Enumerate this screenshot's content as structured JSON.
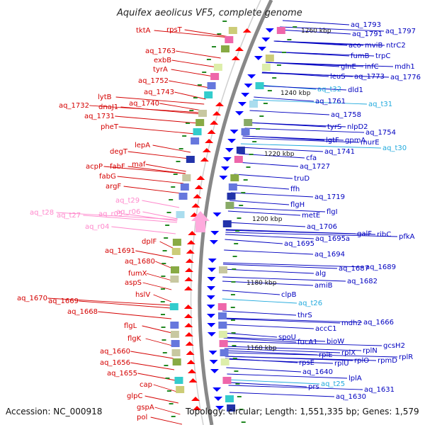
{
  "title": "Aquifex aeolicus VF5, complete genome",
  "footer": {
    "accession": "Accession: NC_000918",
    "topology": "Topology: circular; Length: 1,551,335 bp; Genes: 1,579"
  },
  "colors": {
    "left_label": "#d40000",
    "right_label": "#0000c0",
    "trna_pink": "#ff88cc",
    "trna_cyan": "#22aadd",
    "left_arrow": "#ff0000",
    "right_arrow": "#0000ff"
  },
  "kbp_ticks": [
    "1260 kbp",
    "1240 kbp",
    "1220 kbp",
    "1200 kbp",
    "1180 kbp",
    "1160 kbp"
  ],
  "left_labels": [
    {
      "text": "tktA",
      "color": "red"
    },
    {
      "text": "rpsT",
      "color": "red"
    },
    {
      "text": "aq_1763",
      "color": "red"
    },
    {
      "text": "exbB",
      "color": "red"
    },
    {
      "text": "tyrA",
      "color": "red"
    },
    {
      "text": "aq_1752",
      "color": "red"
    },
    {
      "text": "aq_1743",
      "color": "red"
    },
    {
      "text": "lytB",
      "color": "red"
    },
    {
      "text": "aq_1740",
      "color": "red"
    },
    {
      "text": "aq_1732",
      "color": "red"
    },
    {
      "text": "dnaJ1",
      "color": "red"
    },
    {
      "text": "aq_1731",
      "color": "red"
    },
    {
      "text": "pheT",
      "color": "red"
    },
    {
      "text": "lepA",
      "color": "red"
    },
    {
      "text": "degT",
      "color": "red"
    },
    {
      "text": "acpP",
      "color": "red"
    },
    {
      "text": "fabF",
      "color": "red"
    },
    {
      "text": "maf",
      "color": "red"
    },
    {
      "text": "fabG",
      "color": "red"
    },
    {
      "text": "argF",
      "color": "red"
    },
    {
      "text": "aq_t29",
      "color": "pink"
    },
    {
      "text": "aq_t28",
      "color": "pink"
    },
    {
      "text": "aq_t27",
      "color": "pink"
    },
    {
      "text": "aq_r05",
      "color": "pink"
    },
    {
      "text": "aq_r06",
      "color": "pink"
    },
    {
      "text": "aq_r04",
      "color": "pink"
    },
    {
      "text": "dplF",
      "color": "red"
    },
    {
      "text": "aq_1691",
      "color": "red"
    },
    {
      "text": "aq_1680",
      "color": "red"
    },
    {
      "text": "fumX",
      "color": "red"
    },
    {
      "text": "aspS",
      "color": "red"
    },
    {
      "text": "hslV",
      "color": "red"
    },
    {
      "text": "aq_1670",
      "color": "red"
    },
    {
      "text": "aq_1669",
      "color": "red"
    },
    {
      "text": "aq_1668",
      "color": "red"
    },
    {
      "text": "flgL",
      "color": "red"
    },
    {
      "text": "flgK",
      "color": "red"
    },
    {
      "text": "aq_1660",
      "color": "red"
    },
    {
      "text": "aq_1656",
      "color": "red"
    },
    {
      "text": "aq_1655",
      "color": "red"
    },
    {
      "text": "cap",
      "color": "red"
    },
    {
      "text": "glpC",
      "color": "red"
    },
    {
      "text": "gspA",
      "color": "red"
    },
    {
      "text": "pol",
      "color": "red"
    }
  ],
  "right_labels": [
    {
      "text": "aq_1793",
      "color": "blue"
    },
    {
      "text": "aq_1791",
      "color": "blue"
    },
    {
      "text": "aq_1797",
      "color": "blue"
    },
    {
      "text": "aco",
      "color": "blue"
    },
    {
      "text": "mviB",
      "color": "blue"
    },
    {
      "text": "ntrC2",
      "color": "blue"
    },
    {
      "text": "fumB",
      "color": "blue"
    },
    {
      "text": "trpC",
      "color": "blue"
    },
    {
      "text": "glnE",
      "color": "blue"
    },
    {
      "text": "infC",
      "color": "blue"
    },
    {
      "text": "mdh1",
      "color": "blue"
    },
    {
      "text": "leuS",
      "color": "blue"
    },
    {
      "text": "aq_1773",
      "color": "blue"
    },
    {
      "text": "aq_1776",
      "color": "blue"
    },
    {
      "text": "aq_t32",
      "color": "cyan"
    },
    {
      "text": "dld1",
      "color": "blue"
    },
    {
      "text": "aq_1761",
      "color": "blue"
    },
    {
      "text": "aq_t31",
      "color": "cyan"
    },
    {
      "text": "aq_1758",
      "color": "blue"
    },
    {
      "text": "tyrS",
      "color": "blue"
    },
    {
      "text": "nlpD2",
      "color": "blue"
    },
    {
      "text": "aq_1754",
      "color": "blue"
    },
    {
      "text": "lgtF",
      "color": "blue"
    },
    {
      "text": "gpmA",
      "color": "blue"
    },
    {
      "text": "murE",
      "color": "blue"
    },
    {
      "text": "aq_t30",
      "color": "cyan"
    },
    {
      "text": "cfa",
      "color": "blue"
    },
    {
      "text": "aq_1741",
      "color": "blue"
    },
    {
      "text": "aq_1727",
      "color": "blue"
    },
    {
      "text": "truD",
      "color": "blue"
    },
    {
      "text": "ffh",
      "color": "blue"
    },
    {
      "text": "aq_1719",
      "color": "blue"
    },
    {
      "text": "flgH",
      "color": "blue"
    },
    {
      "text": "metE",
      "color": "blue"
    },
    {
      "text": "flgI",
      "color": "blue"
    },
    {
      "text": "aq_1706",
      "color": "blue"
    },
    {
      "text": "galF",
      "color": "blue"
    },
    {
      "text": "ribC",
      "color": "blue"
    },
    {
      "text": "pfkA",
      "color": "blue"
    },
    {
      "text": "aq_1695a",
      "color": "blue"
    },
    {
      "text": "aq_1695",
      "color": "blue"
    },
    {
      "text": "aq_1694",
      "color": "blue"
    },
    {
      "text": "aq_1687",
      "color": "blue"
    },
    {
      "text": "aq_1689",
      "color": "blue"
    },
    {
      "text": "alg",
      "color": "blue"
    },
    {
      "text": "aq_1682",
      "color": "blue"
    },
    {
      "text": "amiB",
      "color": "blue"
    },
    {
      "text": "clpB",
      "color": "blue"
    },
    {
      "text": "aq_t26",
      "color": "cyan"
    },
    {
      "text": "thrS",
      "color": "blue"
    },
    {
      "text": "mdh2",
      "color": "blue"
    },
    {
      "text": "aq_1666",
      "color": "blue"
    },
    {
      "text": "accC1",
      "color": "blue"
    },
    {
      "text": "spoU",
      "color": "blue"
    },
    {
      "text": "fucA1",
      "color": "blue"
    },
    {
      "text": "bioW",
      "color": "blue"
    },
    {
      "text": "gcsH2",
      "color": "blue"
    },
    {
      "text": "rplE",
      "color": "blue"
    },
    {
      "text": "rplX",
      "color": "blue"
    },
    {
      "text": "rplN",
      "color": "blue"
    },
    {
      "text": "rpsE",
      "color": "blue"
    },
    {
      "text": "rplU",
      "color": "blue"
    },
    {
      "text": "rplO",
      "color": "blue"
    },
    {
      "text": "rpmD",
      "color": "blue"
    },
    {
      "text": "rplR",
      "color": "blue"
    },
    {
      "text": "aq_1640",
      "color": "blue"
    },
    {
      "text": "prs",
      "color": "blue"
    },
    {
      "text": "aq_t25",
      "color": "cyan"
    },
    {
      "text": "lplA",
      "color": "blue"
    },
    {
      "text": "aq_1631",
      "color": "blue"
    },
    {
      "text": "aq_1630",
      "color": "blue"
    }
  ]
}
